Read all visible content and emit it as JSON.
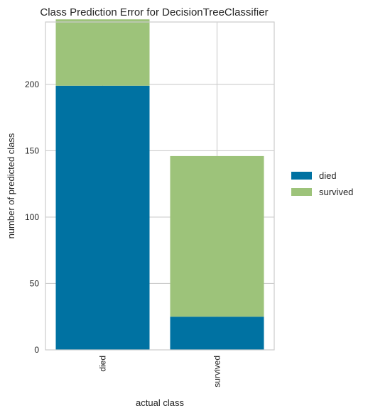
{
  "chart_data": {
    "type": "bar",
    "stacked": true,
    "title": "Class Prediction Error for DecisionTreeClassifier",
    "xlabel": "actual class",
    "ylabel": "number of predicted class",
    "categories": [
      "died",
      "survived"
    ],
    "series": [
      {
        "name": "died",
        "color": "#0072a2",
        "values": [
          199,
          25
        ]
      },
      {
        "name": "survived",
        "color": "#9dc37a",
        "values": [
          50,
          121
        ]
      }
    ],
    "ylim": [
      0,
      247
    ],
    "yticks": [
      0,
      50,
      100,
      150,
      200
    ],
    "grid": true,
    "legend_position": "right"
  }
}
